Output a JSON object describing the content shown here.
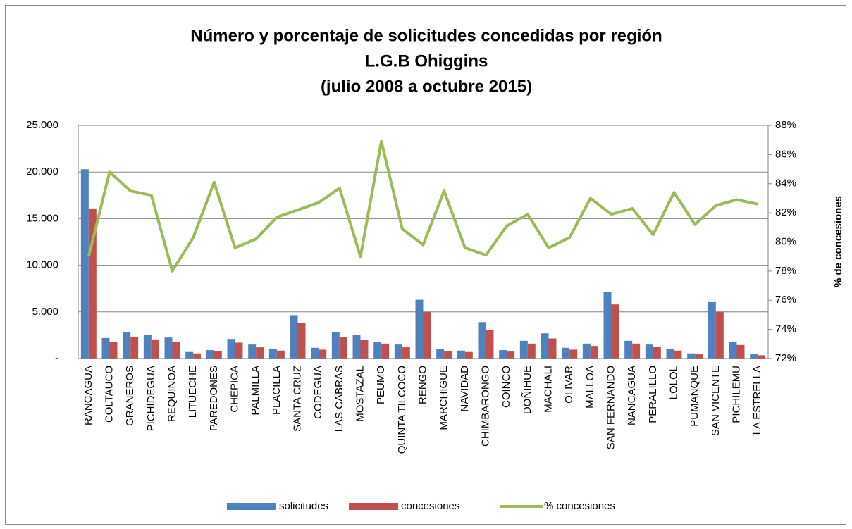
{
  "chart_data": {
    "type": "bar",
    "title": [
      "Número y porcentaje de solicitudes concedidas por región",
      "L.G.B Ohiggins",
      "(julio 2008 a octubre 2015)"
    ],
    "y2_label": "% de concesiones",
    "categories": [
      "RANCAGUA",
      "COLTAUCO",
      "GRANEROS",
      "PICHIDEGUA",
      "REQUINOA",
      "LITUECHE",
      "PAREDONES",
      "CHEPICA",
      "PALMILLA",
      "PLACILLA",
      "SANTA CRUZ",
      "CODEGUA",
      "LAS CABRAS",
      "MOSTAZAL",
      "PEUMO",
      "QUINTA TILCOCO",
      "RENGO",
      "MARCHIGUE",
      "NAVIDAD",
      "CHIMBARONGO",
      "COINCO",
      "DOÑIHUE",
      "MACHALI",
      "OLIVAR",
      "MALLOA",
      "SAN FERNANDO",
      "NANCAGUA",
      "PERALILLO",
      "LOLOL",
      "PUMANQUE",
      "SAN VICENTE",
      "PICHILEMU",
      "LA ESTRELLA"
    ],
    "series": [
      {
        "name": "solicitudes",
        "color": "#4f81bd",
        "type": "bar",
        "values": [
          20300,
          2200,
          2800,
          2500,
          2250,
          700,
          900,
          2100,
          1500,
          1050,
          4650,
          1150,
          2800,
          2550,
          1800,
          1500,
          6300,
          1000,
          850,
          3900,
          900,
          1900,
          2700,
          1150,
          1600,
          7100,
          1900,
          1500,
          1050,
          550,
          6050,
          1750,
          450
        ]
      },
      {
        "name": "concesiones",
        "color": "#c0504d",
        "type": "bar",
        "values": [
          16100,
          1750,
          2350,
          2050,
          1750,
          550,
          800,
          1700,
          1200,
          850,
          3850,
          950,
          2300,
          2000,
          1600,
          1200,
          5000,
          800,
          700,
          3100,
          750,
          1600,
          2150,
          950,
          1350,
          5800,
          1600,
          1250,
          850,
          450,
          5000,
          1450,
          350
        ]
      },
      {
        "name": "% concesiones",
        "color": "#9bbb59",
        "type": "line",
        "axis": "y2",
        "values": [
          79.0,
          84.8,
          83.5,
          83.2,
          78.0,
          80.3,
          84.1,
          79.6,
          80.2,
          81.7,
          82.2,
          82.7,
          83.7,
          79.0,
          86.9,
          80.9,
          79.8,
          83.5,
          79.6,
          79.1,
          81.1,
          81.9,
          79.6,
          80.3,
          83.0,
          81.9,
          82.3,
          80.5,
          83.4,
          81.2,
          82.5,
          82.9,
          82.6
        ]
      }
    ],
    "ylim": [
      0,
      25000
    ],
    "yticks": [
      {
        "value": 0,
        "label": "-"
      },
      {
        "value": 5000,
        "label": "5.000"
      },
      {
        "value": 10000,
        "label": "10.000"
      },
      {
        "value": 15000,
        "label": "15.000"
      },
      {
        "value": 20000,
        "label": "20.000"
      },
      {
        "value": 25000,
        "label": "25.000"
      }
    ],
    "y2lim": [
      72,
      88
    ],
    "y2ticks": [
      {
        "value": 72,
        "label": "72%"
      },
      {
        "value": 74,
        "label": "74%"
      },
      {
        "value": 76,
        "label": "76%"
      },
      {
        "value": 78,
        "label": "78%"
      },
      {
        "value": 80,
        "label": "80%"
      },
      {
        "value": 82,
        "label": "82%"
      },
      {
        "value": 84,
        "label": "84%"
      },
      {
        "value": 86,
        "label": "86%"
      },
      {
        "value": 88,
        "label": "88%"
      }
    ],
    "grid": true,
    "legend": "bottom"
  }
}
